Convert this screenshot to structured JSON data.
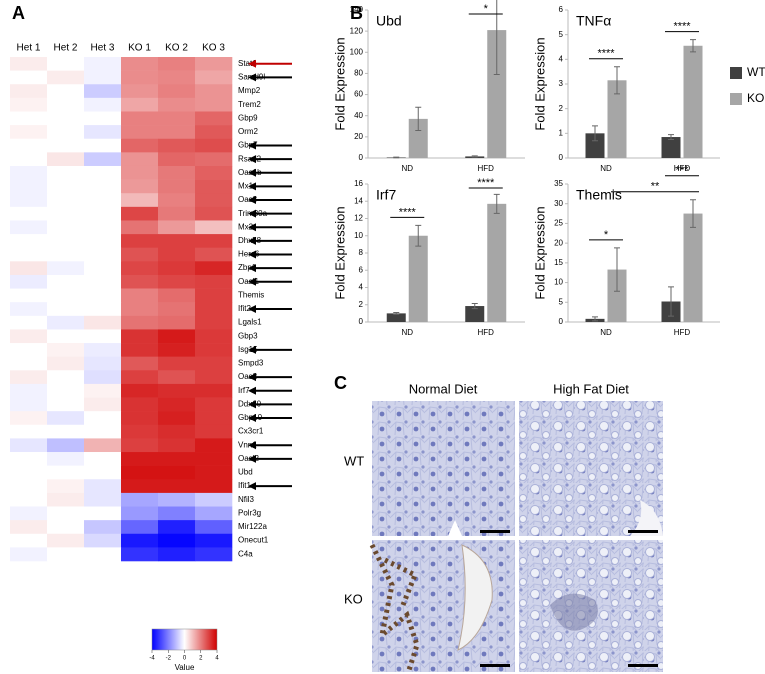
{
  "panel_labels": [
    "A",
    "B",
    "C"
  ],
  "chart_data": [
    {
      "type": "heatmap",
      "columns": [
        "Het 1",
        "Het 2",
        "Het 3",
        "KO 1",
        "KO 2",
        "KO 3"
      ],
      "rows": [
        "Stat1",
        "Samd9l",
        "Mmp2",
        "Trem2",
        "Gbp9",
        "Orm2",
        "Gbp7",
        "Rsad2",
        "Oas1b",
        "Mx1",
        "Oas3",
        "Trim30a",
        "Mx2",
        "Dhx58",
        "Herc6",
        "Zbp1",
        "Oasl1",
        "Themis",
        "Ifit2",
        "Lgals1",
        "Gbp3",
        "Isg15",
        "Smpd3",
        "Oas2",
        "Irf7",
        "Ddx60",
        "Gbp10",
        "Cx3cr1",
        "Vnn1",
        "Oasl2",
        "Ubd",
        "Ifit1",
        "Nfil3",
        "Polr3g",
        "Mir122a",
        "Onecut1",
        "C4a"
      ],
      "values": [
        [
          0.3,
          0,
          -0.2,
          1.8,
          2,
          1.6
        ],
        [
          0,
          0.3,
          -0.2,
          1.8,
          1.9,
          1.4
        ],
        [
          0.3,
          0,
          -0.8,
          1.7,
          2,
          1.7
        ],
        [
          0.2,
          0,
          -0.2,
          1.4,
          1.8,
          1.7
        ],
        [
          0,
          0,
          0,
          2,
          2,
          2.4
        ],
        [
          0.2,
          0,
          -0.4,
          2,
          2,
          2.6
        ],
        [
          0,
          0,
          0,
          2.4,
          2.6,
          2.8
        ],
        [
          0,
          0.4,
          -0.8,
          1.7,
          2.4,
          2.3
        ],
        [
          -0.2,
          0,
          0,
          1.7,
          2.1,
          2.5
        ],
        [
          -0.2,
          0,
          0,
          1.6,
          2.1,
          2.6
        ],
        [
          -0.2,
          0,
          0,
          1.1,
          2,
          2.6
        ],
        [
          0,
          0,
          0,
          2.9,
          2.1,
          2.7
        ],
        [
          -0.2,
          0,
          0,
          2.2,
          1.6,
          1
        ],
        [
          0,
          0,
          0,
          3,
          3,
          3
        ],
        [
          0,
          0,
          0,
          2.7,
          3,
          2.7
        ],
        [
          0.4,
          -0.2,
          0,
          2.9,
          3.1,
          3.4
        ],
        [
          -0.3,
          0,
          0,
          2.7,
          2.9,
          3
        ],
        [
          0,
          0,
          0,
          2,
          2.3,
          3
        ],
        [
          -0.2,
          0,
          0,
          2,
          2.2,
          3
        ],
        [
          0,
          -0.3,
          0.4,
          2.2,
          2.3,
          3
        ],
        [
          0.3,
          0,
          0,
          3.2,
          3.6,
          3.1
        ],
        [
          0,
          0.2,
          -0.3,
          3.2,
          3.5,
          3.1
        ],
        [
          0,
          0.3,
          -0.4,
          2.6,
          3,
          3
        ],
        [
          0.3,
          0,
          -0.5,
          3,
          2.7,
          3
        ],
        [
          -0.2,
          0,
          0.2,
          3.4,
          3.3,
          3.3
        ],
        [
          -0.2,
          0,
          0.3,
          3.2,
          3.4,
          3.1
        ],
        [
          0.2,
          -0.4,
          0,
          3.2,
          3.5,
          3.1
        ],
        [
          0,
          0,
          0,
          3.1,
          3.3,
          3.1
        ],
        [
          -0.4,
          -1,
          1.2,
          3,
          3.2,
          3.6
        ],
        [
          0,
          -0.2,
          0,
          3.6,
          3.6,
          3.6
        ],
        [
          0,
          0,
          0,
          3.7,
          3.7,
          3.6
        ],
        [
          0,
          0.2,
          -0.4,
          3.6,
          3.6,
          3.6
        ],
        [
          0,
          0.3,
          -0.4,
          -1.4,
          -1.2,
          -0.8
        ],
        [
          -0.2,
          0,
          0,
          -1.6,
          -2,
          -1.4
        ],
        [
          0.3,
          0,
          -0.9,
          -2.4,
          -3.5,
          -2.5
        ],
        [
          0,
          0.3,
          -0.6,
          -3.6,
          -3.9,
          -3.6
        ],
        [
          -0.2,
          0,
          0,
          -3.2,
          -3.5,
          -3.2
        ]
      ],
      "colors": [
        "#0000ff",
        "#ffffff",
        "#d00000"
      ],
      "vlim": [
        -4,
        4
      ],
      "vticks": [
        -4,
        -2,
        0,
        2,
        4
      ],
      "colorbar_label": "Value",
      "arrows": {
        "color": "#000000",
        "rows": [
          "Samd9l",
          "Gbp7",
          "Rsad2",
          "Oas1b",
          "Mx1",
          "Oas3",
          "Trim30a",
          "Mx2",
          "Dhx58",
          "Herc6",
          "Zbp1",
          "Oasl1",
          "Ifit2",
          "Isg15",
          "Oas2",
          "Irf7",
          "Ddx60",
          "Gbp10",
          "Vnn1",
          "Oasl2",
          "Ifit1"
        ],
        "highlight": {
          "row": "Stat1",
          "color": "#c00000"
        }
      }
    },
    {
      "type": "bar",
      "title": "Ubd",
      "y_label": "Fold Expression",
      "categories": [
        "ND",
        "HFD"
      ],
      "series": [
        {
          "name": "WT",
          "color": "#404040",
          "values": [
            0.5,
            1.5
          ],
          "errors": [
            0.3,
            0.5
          ]
        },
        {
          "name": "KO",
          "color": "#a6a6a6",
          "values": [
            37,
            121
          ],
          "errors": [
            11,
            42
          ]
        }
      ],
      "ylim": [
        0,
        140
      ],
      "yticks": [
        0,
        20,
        40,
        60,
        80,
        100,
        120,
        140
      ],
      "legend": false,
      "annotations": [
        {
          "text": "*",
          "between": [
            [
              "HFD",
              "WT"
            ],
            [
              "HFD",
              "KO"
            ]
          ]
        }
      ]
    },
    {
      "type": "bar",
      "title": "TNFα",
      "y_label": "Fold Expression",
      "categories": [
        "ND",
        "HFD"
      ],
      "series": [
        {
          "name": "WT",
          "color": "#404040",
          "values": [
            1,
            0.85
          ],
          "errors": [
            0.3,
            0.1
          ]
        },
        {
          "name": "KO",
          "color": "#a6a6a6",
          "values": [
            3.15,
            4.55
          ],
          "errors": [
            0.55,
            0.25
          ]
        }
      ],
      "ylim": [
        0,
        6
      ],
      "yticks": [
        0,
        1,
        2,
        3,
        4,
        5,
        6
      ],
      "legend": "right",
      "annotations": [
        {
          "text": "****",
          "between": [
            [
              "ND",
              "WT"
            ],
            [
              "ND",
              "KO"
            ]
          ]
        },
        {
          "text": "****",
          "between": [
            [
              "HFD",
              "WT"
            ],
            [
              "HFD",
              "KO"
            ]
          ]
        }
      ]
    },
    {
      "type": "bar",
      "title": "Irf7",
      "y_label": "Fold Expression",
      "categories": [
        "ND",
        "HFD"
      ],
      "series": [
        {
          "name": "WT",
          "color": "#404040",
          "values": [
            1,
            1.85
          ],
          "errors": [
            0.1,
            0.3
          ]
        },
        {
          "name": "KO",
          "color": "#a6a6a6",
          "values": [
            10,
            13.7
          ],
          "errors": [
            1.2,
            1.1
          ]
        }
      ],
      "ylim": [
        0,
        16
      ],
      "yticks": [
        0,
        2,
        4,
        6,
        8,
        10,
        12,
        14,
        16
      ],
      "legend": false,
      "annotations": [
        {
          "text": "****",
          "between": [
            [
              "ND",
              "WT"
            ],
            [
              "ND",
              "KO"
            ]
          ]
        },
        {
          "text": "****",
          "between": [
            [
              "HFD",
              "WT"
            ],
            [
              "HFD",
              "KO"
            ]
          ]
        }
      ]
    },
    {
      "type": "bar",
      "title": "Themis",
      "y_label": "Fold Expression",
      "categories": [
        "ND",
        "HFD"
      ],
      "series": [
        {
          "name": "WT",
          "color": "#404040",
          "values": [
            0.8,
            5.2
          ],
          "errors": [
            0.5,
            3.7
          ]
        },
        {
          "name": "KO",
          "color": "#a6a6a6",
          "values": [
            13.3,
            27.5
          ],
          "errors": [
            5.5,
            3.5
          ]
        }
      ],
      "ylim": [
        0,
        35
      ],
      "yticks": [
        0,
        5,
        10,
        15,
        20,
        25,
        30,
        35
      ],
      "legend": false,
      "annotations": [
        {
          "text": "*",
          "between": [
            [
              "ND",
              "WT"
            ],
            [
              "ND",
              "KO"
            ]
          ]
        },
        {
          "text": "**",
          "between": [
            [
              "ND",
              "KO"
            ],
            [
              "HFD",
              "KO"
            ]
          ]
        },
        {
          "text": "***",
          "between": [
            [
              "HFD",
              "WT"
            ],
            [
              "HFD",
              "KO"
            ]
          ]
        }
      ]
    }
  ],
  "micrographs": {
    "columns": [
      "Normal Diet",
      "High Fat Diet"
    ],
    "rows": [
      "WT",
      "KO"
    ]
  }
}
